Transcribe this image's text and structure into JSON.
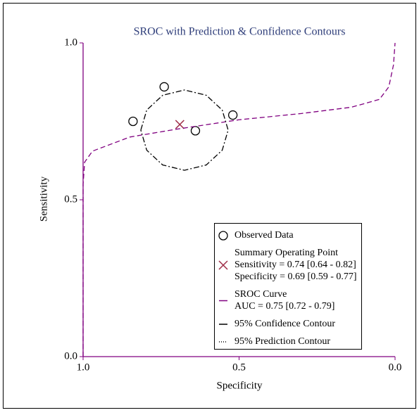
{
  "chart_data": {
    "type": "sroc",
    "title": "SROC with Prediction & Confidence Contours",
    "xlabel": "Specificity",
    "ylabel": "Sensitivity",
    "xlim": [
      1,
      0
    ],
    "ylim": [
      0,
      1
    ],
    "xticks": [
      {
        "value": 1,
        "label": "1.0"
      },
      {
        "value": 0.5,
        "label": "0.5"
      },
      {
        "value": 0,
        "label": "0.0"
      }
    ],
    "yticks": [
      {
        "value": 0,
        "label": "0.0"
      },
      {
        "value": 0.5,
        "label": "0.5"
      },
      {
        "value": 1,
        "label": "1.0"
      }
    ],
    "axis_color": "#800080",
    "series": [
      {
        "name": "Observed Data",
        "kind": "points",
        "color": "#000000",
        "x": [
          0.84,
          0.74,
          0.64,
          0.52
        ],
        "y": [
          0.75,
          0.86,
          0.72,
          0.77
        ]
      },
      {
        "name": "Summary Operating Point",
        "kind": "summary",
        "color": "#a0304a",
        "x": [
          0.69
        ],
        "y": [
          0.74
        ],
        "label_lines": [
          "Sensitivity = 0.74 [0.64 - 0.82]",
          "Specificity = 0.69 [0.59 - 0.77]"
        ]
      },
      {
        "name": "SROC Curve",
        "kind": "curve",
        "color": "#800080",
        "dash": "7,4",
        "x": [
          1.0,
          1.0,
          0.995,
          0.97,
          0.93,
          0.85,
          0.7,
          0.5,
          0.3,
          0.14,
          0.05,
          0.02,
          0.005,
          0.0
        ],
        "y": [
          0.0,
          0.55,
          0.62,
          0.655,
          0.67,
          0.7,
          0.725,
          0.755,
          0.775,
          0.795,
          0.82,
          0.86,
          0.93,
          1.0
        ],
        "label_lines": [
          "AUC = 0.75 [0.72 - 0.79]"
        ]
      },
      {
        "name": "95% Confidence Contour",
        "kind": "contour",
        "color": "#000000",
        "dash": "8,3,2,3",
        "x": [
          0.815,
          0.796,
          0.745,
          0.675,
          0.605,
          0.554,
          0.535,
          0.554,
          0.605,
          0.675,
          0.745,
          0.796,
          0.815
        ],
        "y": [
          0.722,
          0.786,
          0.833,
          0.85,
          0.833,
          0.786,
          0.722,
          0.658,
          0.611,
          0.594,
          0.611,
          0.658,
          0.722
        ]
      },
      {
        "name": "95% Prediction Contour",
        "kind": "contour",
        "color": "#000000",
        "dash": "1,2"
      }
    ]
  }
}
